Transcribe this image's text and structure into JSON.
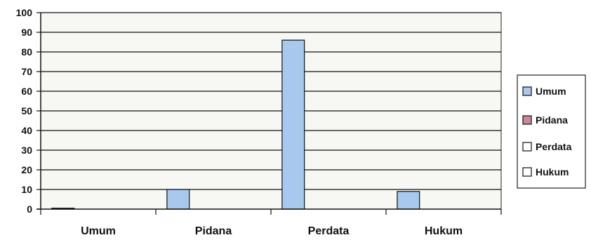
{
  "chart_data": {
    "type": "bar",
    "categories": [
      "Umum",
      "Pidana",
      "Perdata",
      "Hukum"
    ],
    "series": [
      {
        "name": "Umum",
        "color": "#a9c8ee",
        "values": [
          0.5,
          10,
          86,
          9
        ]
      },
      {
        "name": "Pidana",
        "color": "#c98a97",
        "values": [
          0,
          0,
          0,
          0
        ]
      },
      {
        "name": "Perdata",
        "color": "#ffffff",
        "values": [
          0,
          0,
          0,
          0
        ]
      },
      {
        "name": "Hukum",
        "color": "#ffffff",
        "values": [
          0,
          0,
          0,
          0
        ]
      }
    ],
    "yticks": [
      "0",
      "10",
      "20",
      "30",
      "40",
      "50",
      "60",
      "70",
      "80",
      "90",
      "100"
    ],
    "ylim": [
      0,
      100
    ],
    "grid": true,
    "legend_position": "right",
    "bar_stroke_color": "#111111",
    "grid_color": "#111111",
    "plot_background": "#f7f7f3"
  }
}
